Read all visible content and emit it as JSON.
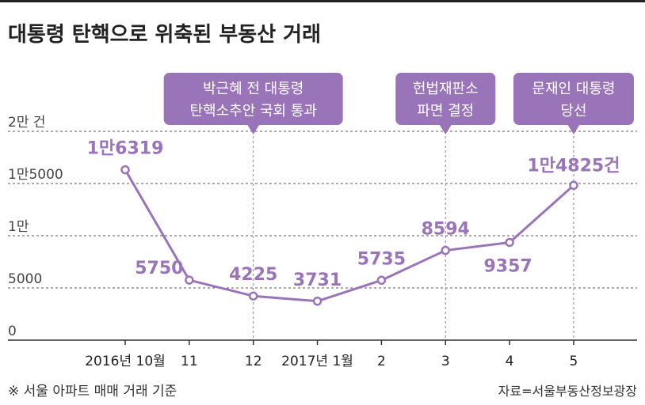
{
  "title": "대통령 탄핵으로 위축된 부동산 거래",
  "note": "※ 서울 아파트 매매 거래 기준",
  "source": "자료=서울부동산정보광장",
  "colors": {
    "accent": "#9a74b8",
    "text": "#333333",
    "grid": "#555555"
  },
  "chart_data": {
    "type": "line",
    "x": [
      "2016년 10월",
      "11",
      "12",
      "2017년 1월",
      "2",
      "3",
      "4",
      "5"
    ],
    "values": [
      16319,
      5750,
      4225,
      3731,
      5735,
      8594,
      9357,
      14825
    ],
    "data_labels": [
      "1만6319",
      "5750",
      "4225",
      "3731",
      "5735",
      "8594",
      "9357",
      "1만4825건"
    ],
    "ylim": [
      0,
      20000
    ],
    "yticks": [
      0,
      5000,
      10000,
      15000,
      20000
    ],
    "ytick_labels": [
      "0",
      "5000",
      "1만",
      "1만5000",
      "2만 건"
    ],
    "grid": true,
    "annotations": [
      {
        "at": "12",
        "text": [
          "박근혜 전 대통령",
          "탄핵소추안 국회 통과"
        ]
      },
      {
        "at": "3",
        "text": [
          "헌법재판소",
          "파면 결정"
        ]
      },
      {
        "at": "5",
        "text": [
          "문재인 대통령",
          "당선"
        ]
      }
    ]
  }
}
